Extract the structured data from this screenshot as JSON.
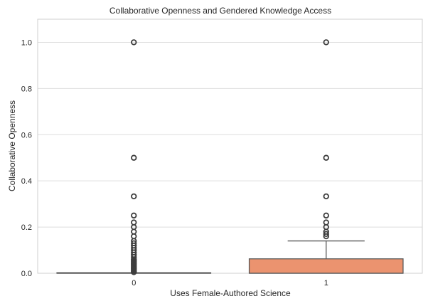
{
  "chart_data": {
    "type": "box",
    "title": "Collaborative Openness and Gendered Knowledge Access",
    "xlabel": "Uses Female-Authored Science",
    "ylabel": "Collaborative Openness",
    "categories": [
      "0",
      "1"
    ],
    "ylim": [
      0,
      1.1
    ],
    "yticks": [
      0.0,
      0.2,
      0.4,
      0.6,
      0.8,
      1.0
    ],
    "ytick_labels": [
      "0.0",
      "0.2",
      "0.4",
      "0.6",
      "0.8",
      "1.0"
    ],
    "grid": true,
    "boxes": [
      {
        "category": "0",
        "q1": 0,
        "median": 0,
        "q3": 0,
        "whisker_low": 0,
        "whisker_high": 0,
        "outliers": [
          0.005,
          0.01,
          0.015,
          0.02,
          0.025,
          0.03,
          0.035,
          0.04,
          0.045,
          0.05,
          0.055,
          0.06,
          0.07,
          0.08,
          0.09,
          0.1,
          0.11,
          0.12,
          0.13,
          0.14,
          0.16,
          0.18,
          0.2,
          0.22,
          0.25,
          0.333,
          0.5,
          1.0
        ]
      },
      {
        "category": "1",
        "q1": 0,
        "median": 0,
        "q3": 0.0625,
        "whisker_low": 0,
        "whisker_high": 0.14,
        "outliers": [
          0.16,
          0.17,
          0.18,
          0.2,
          0.22,
          0.25,
          0.333,
          0.5,
          1.0
        ]
      }
    ],
    "colors": {
      "box_fill": "#EB936F",
      "line": "#595959",
      "outlier": "#3d3d3d",
      "grid": "#dddddd",
      "spine": "#cfcfcf"
    }
  }
}
